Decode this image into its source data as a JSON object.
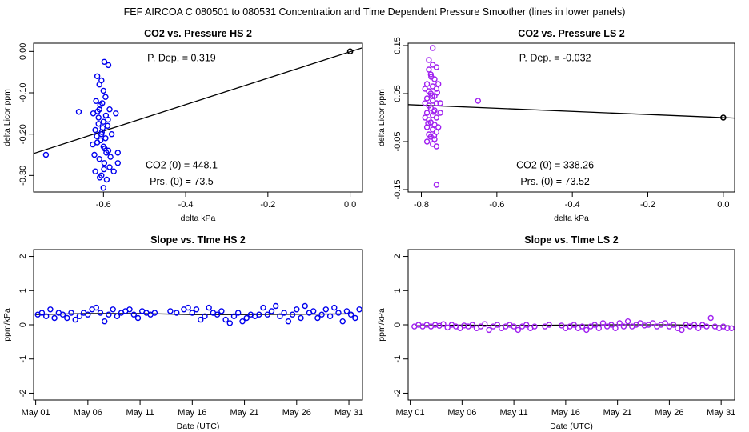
{
  "figure": {
    "suptitle": "FEF   AIRCOA C   080501 to 080531   Concentration and Time Dependent Pressure Smoother (lines in lower panels)"
  },
  "colors": {
    "hs": "#0000ee",
    "ls": "#a020f0",
    "line": "#000000"
  },
  "chart_data": [
    {
      "id": "p1",
      "type": "scatter",
      "title": "CO2 vs. Pressure HS 2",
      "xlabel": "delta kPa",
      "ylabel": "delta Licor ppm",
      "xlim": [
        -0.77,
        0.03
      ],
      "ylim": [
        -0.34,
        0.02
      ],
      "xticks": [
        -0.6,
        -0.4,
        -0.2,
        0.0
      ],
      "xtick_labels": [
        "-0.6",
        "-0.4",
        "-0.2",
        "0.0"
      ],
      "yticks": [
        -0.3,
        -0.2,
        -0.1,
        0.0
      ],
      "ytick_labels": [
        "-0.30",
        "-0.20",
        "-0.10",
        "0.00"
      ],
      "fit_line": {
        "x": [
          -0.77,
          0.03
        ],
        "y": [
          -0.247,
          0.009
        ]
      },
      "reference_point": {
        "x": 0.0,
        "y": 0.0
      },
      "annotations": [
        {
          "text": "P. Dep. =  0.319",
          "pos": "top-center"
        },
        {
          "text": "CO2 (0) =  448.1",
          "pos": "bottom-center"
        },
        {
          "text": "Prs. (0) =  73.5",
          "pos": "bottom-center-2"
        }
      ],
      "color_key": "hs",
      "points": [
        [
          -0.74,
          -0.25
        ],
        [
          -0.66,
          -0.146
        ],
        [
          -0.615,
          -0.06
        ],
        [
          -0.605,
          -0.07
        ],
        [
          -0.598,
          -0.025
        ],
        [
          -0.588,
          -0.033
        ],
        [
          -0.61,
          -0.08
        ],
        [
          -0.6,
          -0.095
        ],
        [
          -0.618,
          -0.12
        ],
        [
          -0.608,
          -0.13
        ],
        [
          -0.595,
          -0.11
        ],
        [
          -0.585,
          -0.14
        ],
        [
          -0.625,
          -0.15
        ],
        [
          -0.612,
          -0.16
        ],
        [
          -0.6,
          -0.17
        ],
        [
          -0.59,
          -0.18
        ],
        [
          -0.62,
          -0.19
        ],
        [
          -0.605,
          -0.2
        ],
        [
          -0.595,
          -0.21
        ],
        [
          -0.615,
          -0.22
        ],
        [
          -0.6,
          -0.23
        ],
        [
          -0.588,
          -0.24
        ],
        [
          -0.622,
          -0.25
        ],
        [
          -0.61,
          -0.26
        ],
        [
          -0.598,
          -0.27
        ],
        [
          -0.585,
          -0.28
        ],
        [
          -0.62,
          -0.29
        ],
        [
          -0.605,
          -0.3
        ],
        [
          -0.592,
          -0.31
        ],
        [
          -0.6,
          -0.33
        ],
        [
          -0.57,
          -0.15
        ],
        [
          -0.565,
          -0.27
        ],
        [
          -0.58,
          -0.2
        ],
        [
          -0.61,
          -0.14
        ],
        [
          -0.602,
          -0.185
        ],
        [
          -0.594,
          -0.155
        ],
        [
          -0.616,
          -0.205
        ],
        [
          -0.607,
          -0.215
        ],
        [
          -0.597,
          -0.235
        ],
        [
          -0.612,
          -0.175
        ],
        [
          -0.603,
          -0.125
        ],
        [
          -0.575,
          -0.29
        ],
        [
          -0.626,
          -0.225
        ],
        [
          -0.589,
          -0.165
        ],
        [
          -0.599,
          -0.285
        ],
        [
          -0.583,
          -0.255
        ],
        [
          -0.614,
          -0.145
        ],
        [
          -0.604,
          -0.195
        ],
        [
          -0.593,
          -0.245
        ],
        [
          -0.609,
          -0.305
        ],
        [
          -0.565,
          -0.245
        ]
      ]
    },
    {
      "id": "p2",
      "type": "scatter",
      "title": "CO2 vs. Pressure LS 2",
      "xlabel": "delta kPa",
      "ylabel": "delta Licor ppm",
      "xlim": [
        -0.835,
        0.03
      ],
      "ylim": [
        -0.155,
        0.155
      ],
      "xticks": [
        -0.8,
        -0.6,
        -0.4,
        -0.2,
        0.0
      ],
      "xtick_labels": [
        "-0.8",
        "-0.6",
        "-0.4",
        "-0.2",
        "0.0"
      ],
      "yticks": [
        -0.15,
        -0.05,
        0.05,
        0.15
      ],
      "ytick_labels": [
        "-0.15",
        "-0.05",
        "0.05",
        "0.15"
      ],
      "fit_line": {
        "x": [
          -0.835,
          0.03
        ],
        "y": [
          0.027,
          -0.001
        ]
      },
      "reference_point": {
        "x": 0.0,
        "y": 0.0
      },
      "annotations": [
        {
          "text": "P. Dep. =  -0.032",
          "pos": "top-center"
        },
        {
          "text": "CO2 (0) =  338.26",
          "pos": "bottom-center"
        },
        {
          "text": "Prs. (0) =  73.52",
          "pos": "bottom-center-2"
        }
      ],
      "color_key": "ls",
      "points": [
        [
          -0.77,
          0.145
        ],
        [
          -0.78,
          0.12
        ],
        [
          -0.77,
          0.11
        ],
        [
          -0.76,
          0.105
        ],
        [
          -0.78,
          0.1
        ],
        [
          -0.775,
          0.09
        ],
        [
          -0.765,
          0.08
        ],
        [
          -0.785,
          0.07
        ],
        [
          -0.77,
          0.065
        ],
        [
          -0.76,
          0.06
        ],
        [
          -0.78,
          0.055
        ],
        [
          -0.775,
          0.05
        ],
        [
          -0.765,
          0.045
        ],
        [
          -0.785,
          0.04
        ],
        [
          -0.77,
          0.035
        ],
        [
          -0.76,
          0.03
        ],
        [
          -0.78,
          0.025
        ],
        [
          -0.775,
          0.02
        ],
        [
          -0.765,
          0.015
        ],
        [
          -0.785,
          0.01
        ],
        [
          -0.77,
          0.005
        ],
        [
          -0.76,
          0.0
        ],
        [
          -0.78,
          -0.005
        ],
        [
          -0.775,
          -0.01
        ],
        [
          -0.765,
          -0.015
        ],
        [
          -0.785,
          -0.02
        ],
        [
          -0.77,
          -0.025
        ],
        [
          -0.76,
          -0.03
        ],
        [
          -0.78,
          -0.035
        ],
        [
          -0.775,
          -0.04
        ],
        [
          -0.765,
          -0.045
        ],
        [
          -0.785,
          -0.05
        ],
        [
          -0.77,
          -0.055
        ],
        [
          -0.76,
          -0.06
        ],
        [
          -0.75,
          0.03
        ],
        [
          -0.755,
          0.07
        ],
        [
          -0.79,
          0.06
        ],
        [
          -0.79,
          0.0
        ],
        [
          -0.755,
          -0.02
        ],
        [
          -0.75,
          0.01
        ],
        [
          -0.79,
          0.03
        ],
        [
          -0.65,
          0.035
        ],
        [
          -0.76,
          -0.14
        ],
        [
          -0.772,
          0.045
        ],
        [
          -0.768,
          0.012
        ],
        [
          -0.782,
          -0.012
        ],
        [
          -0.758,
          0.052
        ],
        [
          -0.774,
          0.085
        ],
        [
          -0.766,
          -0.038
        ]
      ]
    },
    {
      "id": "p3",
      "type": "scatter",
      "title": "Slope vs. TIme HS 2",
      "xlabel": "Date (UTC)",
      "ylabel": "ppm/kPa",
      "xlim": [
        -0.2,
        31.3
      ],
      "ylim": [
        -2.2,
        2.2
      ],
      "xticks": [
        0,
        5,
        10,
        15,
        20,
        25,
        30
      ],
      "xtick_labels": [
        "May 01",
        "May 06",
        "May 11",
        "May 16",
        "May 21",
        "May 26",
        "May 31"
      ],
      "yticks": [
        -2,
        -1,
        0,
        1,
        2
      ],
      "ytick_labels": [
        "-2",
        "-1",
        "0",
        "1",
        "2"
      ],
      "smooth_line": {
        "x": [
          0,
          5,
          10,
          15,
          20,
          25,
          30.5
        ],
        "y": [
          0.3,
          0.33,
          0.33,
          0.3,
          0.3,
          0.31,
          0.32
        ]
      },
      "color_key": "hs",
      "points": [
        [
          0.2,
          0.3
        ],
        [
          0.6,
          0.35
        ],
        [
          1.0,
          0.25
        ],
        [
          1.4,
          0.45
        ],
        [
          1.8,
          0.2
        ],
        [
          2.2,
          0.35
        ],
        [
          2.6,
          0.3
        ],
        [
          3.0,
          0.2
        ],
        [
          3.4,
          0.35
        ],
        [
          3.8,
          0.15
        ],
        [
          4.2,
          0.25
        ],
        [
          4.6,
          0.35
        ],
        [
          5.0,
          0.3
        ],
        [
          5.4,
          0.45
        ],
        [
          5.8,
          0.5
        ],
        [
          6.2,
          0.35
        ],
        [
          6.6,
          0.1
        ],
        [
          7.0,
          0.3
        ],
        [
          7.4,
          0.45
        ],
        [
          7.8,
          0.25
        ],
        [
          8.2,
          0.35
        ],
        [
          8.6,
          0.4
        ],
        [
          9.0,
          0.45
        ],
        [
          9.4,
          0.3
        ],
        [
          9.8,
          0.2
        ],
        [
          10.2,
          0.4
        ],
        [
          10.6,
          0.35
        ],
        [
          11.0,
          0.3
        ],
        [
          11.4,
          0.35
        ],
        [
          14.2,
          0.45
        ],
        [
          14.6,
          0.5
        ],
        [
          15.0,
          0.35
        ],
        [
          15.4,
          0.45
        ],
        [
          15.8,
          0.15
        ],
        [
          16.2,
          0.25
        ],
        [
          16.6,
          0.5
        ],
        [
          17.0,
          0.35
        ],
        [
          17.4,
          0.3
        ],
        [
          17.8,
          0.4
        ],
        [
          18.2,
          0.15
        ],
        [
          18.6,
          0.05
        ],
        [
          19.0,
          0.25
        ],
        [
          19.4,
          0.35
        ],
        [
          19.8,
          0.1
        ],
        [
          20.2,
          0.2
        ],
        [
          20.6,
          0.3
        ],
        [
          21.0,
          0.25
        ],
        [
          21.4,
          0.3
        ],
        [
          21.8,
          0.5
        ],
        [
          22.2,
          0.3
        ],
        [
          22.6,
          0.4
        ],
        [
          23.0,
          0.55
        ],
        [
          23.4,
          0.25
        ],
        [
          23.8,
          0.35
        ],
        [
          24.2,
          0.1
        ],
        [
          24.6,
          0.3
        ],
        [
          25.0,
          0.45
        ],
        [
          25.4,
          0.2
        ],
        [
          25.8,
          0.55
        ],
        [
          26.2,
          0.35
        ],
        [
          26.6,
          0.4
        ],
        [
          27.0,
          0.2
        ],
        [
          27.4,
          0.3
        ],
        [
          27.8,
          0.45
        ],
        [
          28.2,
          0.25
        ],
        [
          28.6,
          0.5
        ],
        [
          29.0,
          0.35
        ],
        [
          29.4,
          0.1
        ],
        [
          29.8,
          0.4
        ],
        [
          30.2,
          0.3
        ],
        [
          30.6,
          0.2
        ],
        [
          31.0,
          0.45
        ],
        [
          13.5,
          0.35
        ],
        [
          12.9,
          0.4
        ]
      ]
    },
    {
      "id": "p4",
      "type": "scatter",
      "title": "Slope vs. TIme LS 2",
      "xlabel": "Date (UTC)",
      "ylabel": "ppm/kPa",
      "xlim": [
        -0.2,
        31.3
      ],
      "ylim": [
        -2.2,
        2.2
      ],
      "xticks": [
        0,
        5,
        10,
        15,
        20,
        25,
        30
      ],
      "xtick_labels": [
        "May 01",
        "May 06",
        "May 11",
        "May 16",
        "May 21",
        "May 26",
        "May 31"
      ],
      "yticks": [
        -2,
        -1,
        0,
        1,
        2
      ],
      "ytick_labels": [
        "-2",
        "-1",
        "0",
        "1",
        "2"
      ],
      "smooth_line": {
        "x": [
          0.5,
          5,
          10,
          15,
          20,
          25,
          30.8
        ],
        "y": [
          -0.03,
          -0.01,
          -0.02,
          -0.01,
          0.0,
          0.0,
          -0.03
        ]
      },
      "color_key": "ls",
      "points": [
        [
          0.4,
          -0.05
        ],
        [
          0.8,
          0.0
        ],
        [
          1.2,
          -0.05
        ],
        [
          1.6,
          0.0
        ],
        [
          2.0,
          -0.05
        ],
        [
          2.4,
          0.0
        ],
        [
          2.8,
          -0.03
        ],
        [
          3.2,
          0.02
        ],
        [
          3.6,
          -0.08
        ],
        [
          4.0,
          0.0
        ],
        [
          4.4,
          -0.05
        ],
        [
          4.8,
          -0.1
        ],
        [
          5.2,
          -0.02
        ],
        [
          5.6,
          -0.05
        ],
        [
          6.0,
          0.0
        ],
        [
          6.4,
          -0.1
        ],
        [
          6.8,
          -0.05
        ],
        [
          7.2,
          0.02
        ],
        [
          7.6,
          -0.15
        ],
        [
          8.0,
          -0.05
        ],
        [
          8.4,
          0.0
        ],
        [
          8.8,
          -0.1
        ],
        [
          9.2,
          -0.05
        ],
        [
          9.6,
          0.0
        ],
        [
          10.0,
          -0.05
        ],
        [
          10.4,
          -0.15
        ],
        [
          10.8,
          -0.05
        ],
        [
          11.2,
          0.0
        ],
        [
          11.6,
          -0.1
        ],
        [
          12.0,
          -0.05
        ],
        [
          13.0,
          -0.05
        ],
        [
          13.4,
          0.0
        ],
        [
          14.6,
          -0.02
        ],
        [
          15.0,
          -0.1
        ],
        [
          15.4,
          -0.05
        ],
        [
          15.8,
          0.0
        ],
        [
          16.2,
          -0.1
        ],
        [
          16.6,
          -0.05
        ],
        [
          17.0,
          -0.15
        ],
        [
          17.4,
          -0.05
        ],
        [
          17.8,
          0.0
        ],
        [
          18.2,
          -0.1
        ],
        [
          18.6,
          0.05
        ],
        [
          19.0,
          -0.05
        ],
        [
          19.4,
          0.0
        ],
        [
          19.8,
          -0.1
        ],
        [
          20.2,
          0.05
        ],
        [
          20.6,
          -0.05
        ],
        [
          21.0,
          0.1
        ],
        [
          21.4,
          -0.05
        ],
        [
          21.8,
          0.0
        ],
        [
          22.2,
          0.05
        ],
        [
          22.6,
          -0.02
        ],
        [
          23.0,
          0.0
        ],
        [
          23.4,
          0.05
        ],
        [
          23.8,
          -0.05
        ],
        [
          24.2,
          0.0
        ],
        [
          24.6,
          0.05
        ],
        [
          25.0,
          -0.05
        ],
        [
          25.4,
          0.0
        ],
        [
          25.8,
          -0.1
        ],
        [
          26.2,
          -0.15
        ],
        [
          26.6,
          0.0
        ],
        [
          27.0,
          -0.05
        ],
        [
          27.4,
          0.0
        ],
        [
          27.8,
          -0.1
        ],
        [
          28.2,
          0.0
        ],
        [
          28.6,
          -0.05
        ],
        [
          29.0,
          0.2
        ],
        [
          29.4,
          -0.05
        ],
        [
          29.8,
          -0.1
        ],
        [
          30.2,
          -0.05
        ],
        [
          30.6,
          -0.1
        ],
        [
          31.0,
          -0.1
        ]
      ]
    }
  ]
}
